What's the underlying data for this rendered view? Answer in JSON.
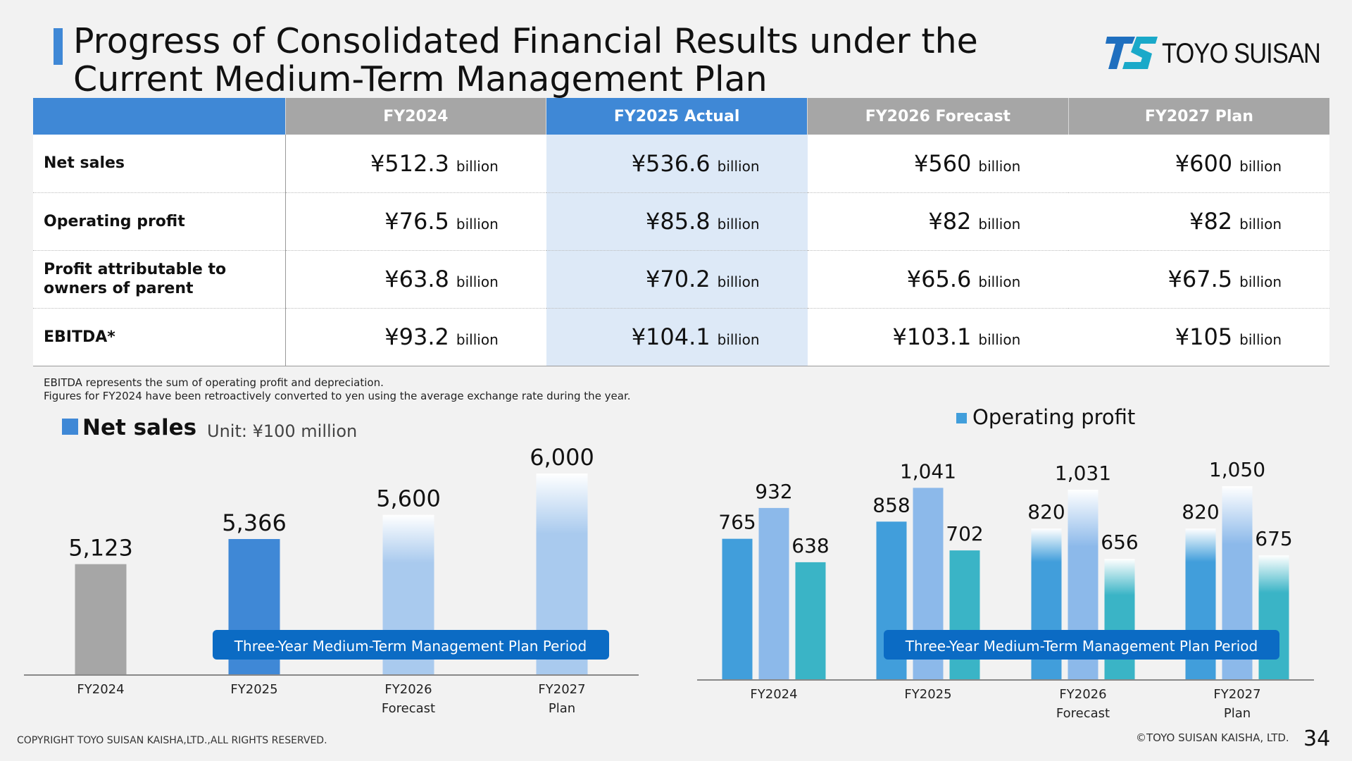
{
  "title": "Progress of Consolidated Financial Results under the Current Medium-Term Management Plan",
  "logo_text": "TOYO SUISAN",
  "colors": {
    "accent": "#3f88d6",
    "gray": "#a6a6a6",
    "light_blue": "#a9caee",
    "sales_blue": "#3f88d6",
    "op_blue": "#419edb",
    "op_light": "#8cb9ea",
    "op_teal": "#3ab4c6",
    "band": "#0b6bc4"
  },
  "table": {
    "headers": [
      "FY2024",
      "FY2025 Actual",
      "FY2026 Forecast",
      "FY2027 Plan"
    ],
    "unit": "billion",
    "rows": [
      {
        "label": "Net sales",
        "values": [
          "¥512.3",
          "¥536.6",
          "¥560",
          "¥600"
        ]
      },
      {
        "label": "Operating profit",
        "values": [
          "¥76.5",
          "¥85.8",
          "¥82",
          "¥82"
        ]
      },
      {
        "label": "Profit attributable to owners of parent",
        "values": [
          "¥63.8",
          "¥70.2",
          "¥65.6",
          "¥67.5"
        ]
      },
      {
        "label": "EBITDA*",
        "values": [
          "¥93.2",
          "¥104.1",
          "¥103.1",
          "¥105"
        ]
      }
    ]
  },
  "notes": [
    "EBITDA represents the sum of operating profit and depreciation.",
    "Figures for FY2024 have been retroactively converted to yen using the average exchange rate during the year."
  ],
  "chart_data": [
    {
      "type": "bar",
      "title": "Net sales",
      "unit_label": "Unit: ¥100 million",
      "categories": [
        "FY2024",
        "FY2025",
        "FY2026\nForecast",
        "FY2027\nPlan"
      ],
      "values": [
        5123,
        5366,
        5600,
        6000
      ],
      "value_labels": [
        "5,123",
        "5,366",
        "5,600",
        "6,000"
      ],
      "styles": [
        "actual-gray",
        "actual-blue",
        "gradient",
        "gradient"
      ],
      "band_label": "Three-Year Medium-Term Management Plan Period",
      "ylim": [
        4050,
        6000
      ],
      "legend": "top-left"
    },
    {
      "type": "bar",
      "title": "Operating profit",
      "categories": [
        "FY2024",
        "FY2025",
        "FY2026\nForecast",
        "FY2027\nPlan"
      ],
      "series": [
        {
          "values": [
            765,
            858,
            820,
            820
          ],
          "labels": [
            "765",
            "858",
            "820",
            "820"
          ],
          "styles": [
            "solid",
            "solid",
            "gradient-top",
            "gradient-top"
          ]
        },
        {
          "values": [
            932,
            1041,
            1031,
            1050
          ],
          "labels": [
            "932",
            "1,041",
            "1,031",
            "1,050"
          ],
          "styles": [
            "solid",
            "solid",
            "gradient",
            "gradient"
          ]
        },
        {
          "values": [
            638,
            702,
            656,
            675
          ],
          "labels": [
            "638",
            "702",
            "656",
            "675"
          ],
          "styles": [
            "solid",
            "solid",
            "gradient-top",
            "gradient-top"
          ]
        }
      ],
      "band_label": "Three-Year Medium-Term Management Plan Period",
      "ylim": [
        0,
        1050
      ],
      "legend": "top-center"
    }
  ],
  "footer": {
    "copyright_left": "COPYRIGHT TOYO SUISAN KAISHA,LTD.,ALL RIGHTS RESERVED.",
    "copyright_right": "©TOYO SUISAN KAISHA, LTD.",
    "page": "34"
  }
}
